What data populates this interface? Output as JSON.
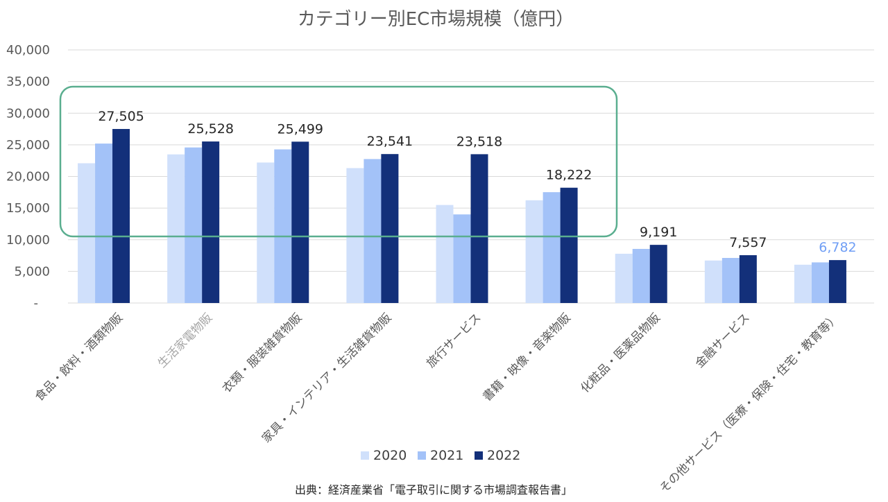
{
  "chart_data": {
    "type": "bar",
    "title": "カテゴリー別EC市場規模（億円）",
    "categories": [
      "食品・飲料・酒類物販",
      "生活家電物販",
      "衣類・服装雑貨物販",
      "家具・インテリア・生活雑貨物販",
      "旅行サービス",
      "書籍・映像・音楽物販",
      "化粧品・医薬品物販",
      "金融サービス",
      "その他サービス（医療・保険・住宅・教育等）"
    ],
    "series": [
      {
        "name": "2020",
        "color": "#d0e0fb",
        "values": [
          22086,
          23489,
          22203,
          21322,
          15494,
          16238,
          7787,
          6715,
          6052
        ]
      },
      {
        "name": "2021",
        "color": "#a3c2f8",
        "values": [
          25199,
          24584,
          24279,
          22752,
          14003,
          17518,
          8552,
          7122,
          6420
        ]
      },
      {
        "name": "2022",
        "color": "#13307a",
        "values": [
          27505,
          25528,
          25499,
          23541,
          23518,
          18222,
          9191,
          7557,
          6782
        ]
      }
    ],
    "data_labels": [
      "27,505",
      "25,528",
      "25,499",
      "23,541",
      "23,518",
      "18,222",
      "9,191",
      "7,557",
      "6,782"
    ],
    "y_ticks": [
      "-",
      "5,000",
      "10,000",
      "15,000",
      "20,000",
      "25,000",
      "30,000",
      "35,000",
      "40,000"
    ],
    "ylim": [
      0,
      40000
    ],
    "grid": true,
    "legend_position": "bottom",
    "highlight_box_color": "#5aae8f",
    "source": "出典：経済産業省「電子取引に関する市場調査報告書」"
  }
}
